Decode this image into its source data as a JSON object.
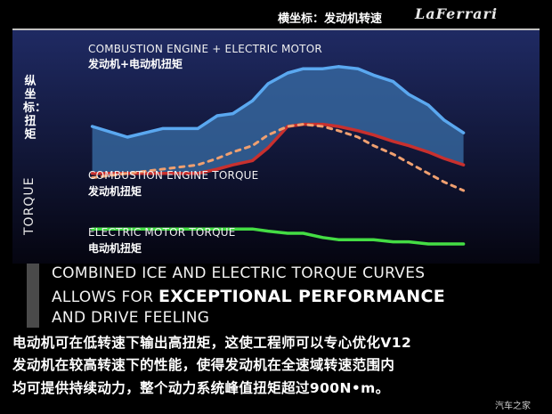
{
  "header": {
    "axis_note": "横坐标：发动机转速",
    "logo_text": "LaFerrari"
  },
  "colors": {
    "background": "#000000",
    "panel_gradient_top": "#1f2a63",
    "panel_gradient_bottom": "#050510",
    "combined_curve": "#5aa8f0",
    "band_fill": "#3a6fa8",
    "ice_curve": "#c8302e",
    "ice_dashed": "#f0a070",
    "electric_curve": "#44dd44"
  },
  "chart_data": {
    "type": "line",
    "x": [
      0.04,
      0.13,
      0.22,
      0.31,
      0.36,
      0.4,
      0.45,
      0.49,
      0.54,
      0.58,
      0.63,
      0.67,
      0.72,
      0.76,
      0.81,
      0.85,
      0.9,
      0.94,
      0.99
    ],
    "xlim": [
      0,
      1
    ],
    "ylim": [
      0,
      1
    ],
    "ylabel": "TORQUE",
    "ylabel_cn": "纵坐标：扭矩",
    "series": [
      {
        "name": "COMBUSTION ENGINE + ELECTRIC MOTOR",
        "name_cn": "发动机+电动机扭矩",
        "color_key": "combined_curve",
        "values": [
          0.7,
          0.65,
          0.69,
          0.69,
          0.75,
          0.76,
          0.82,
          0.9,
          0.95,
          0.97,
          0.97,
          0.98,
          0.97,
          0.94,
          0.91,
          0.85,
          0.8,
          0.73,
          0.67
        ]
      },
      {
        "name": "COMBUSTION ENGINE TORQUE",
        "name_cn": "发动机扭矩",
        "color_key": "ice_curve",
        "values": [
          0.48,
          0.48,
          0.48,
          0.48,
          0.5,
          0.52,
          0.54,
          0.6,
          0.7,
          0.71,
          0.71,
          0.7,
          0.68,
          0.66,
          0.63,
          0.61,
          0.58,
          0.55,
          0.52
        ]
      },
      {
        "name": "ICE torque (dashed)",
        "color_key": "ice_dashed",
        "dashed": true,
        "values": [
          0.46,
          0.48,
          0.5,
          0.52,
          0.55,
          0.58,
          0.61,
          0.66,
          0.7,
          0.71,
          0.7,
          0.68,
          0.65,
          0.61,
          0.57,
          0.53,
          0.48,
          0.44,
          0.4
        ]
      },
      {
        "name": "ELECTRIC MOTOR TORQUE",
        "name_cn": "电动机扭矩",
        "color_key": "electric_curve",
        "values": [
          0.22,
          0.22,
          0.22,
          0.22,
          0.22,
          0.22,
          0.22,
          0.21,
          0.2,
          0.2,
          0.18,
          0.17,
          0.17,
          0.17,
          0.16,
          0.16,
          0.15,
          0.15,
          0.15
        ]
      }
    ],
    "grid": false,
    "legend": "inline"
  },
  "labels": {
    "combined_en": "COMBUSTION ENGINE + ELECTRIC MOTOR",
    "combined_cn": "发动机+电动机扭矩",
    "ice_en": "COMBUSTION ENGINE TORQUE",
    "ice_cn": "发动机扭矩",
    "electric_en": "ELECTRIC MOTOR TORQUE",
    "electric_cn": "电动机扭矩"
  },
  "banner": {
    "line1": "COMBINED ICE AND ELECTRIC TORQUE CURVES",
    "line2_pre": "ALLOWS FOR ",
    "line2_bold": "EXCEPTIONAL PERFORMANCE",
    "line3": "AND DRIVE FEELING"
  },
  "caption": {
    "line1": "电动机可在低转速下输出高扭矩，这使工程师可以专心优化V12",
    "line2": "发动机在较高转速下的性能，使得发动机在全速域转速范围内",
    "line3": "均可提供持续动力，整个动力系统峰值扭矩超过900N•m。"
  },
  "watermark": "汽车之家"
}
